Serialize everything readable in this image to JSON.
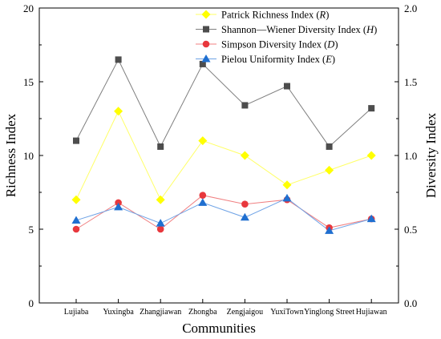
{
  "chart_data": {
    "type": "line",
    "xlabel": "Communities",
    "ylabel_left": "Richness Index",
    "ylabel_right": "Diversity Index",
    "ylim_left": [
      0,
      20
    ],
    "yticks_left": [
      "0",
      "5",
      "10",
      "15",
      "20"
    ],
    "ylim_right": [
      0,
      2.0
    ],
    "yticks_right": [
      "0.0",
      "0.5",
      "1.0",
      "1.5",
      "2.0"
    ],
    "categories": [
      "Lujiaba",
      "Yuxingba",
      "Zhangjiawan",
      "Zhongba",
      "Zengjaigou",
      "YuxiTown",
      "Yinglong Street",
      "Hujiawan"
    ],
    "grid": false,
    "legend_position": "top-right",
    "series": [
      {
        "name": "Patrick Richness Index (R)",
        "name_main": "Patrick Richness Index (",
        "name_var": "R",
        "axis": "left",
        "marker": "diamond",
        "color": "#ffff00",
        "line_color": "#ffff66",
        "values": [
          7,
          13,
          7,
          11,
          10,
          8,
          9,
          10
        ]
      },
      {
        "name": "Shannon—Wiener Diversity Index (H)",
        "name_main": "Shannon—Wiener Diversity Index (",
        "name_var": "H",
        "axis": "right",
        "marker": "square",
        "color": "#4d4d4d",
        "line_color": "#7f7f7f",
        "values": [
          1.1,
          1.65,
          1.06,
          1.62,
          1.34,
          1.47,
          1.06,
          1.32
        ]
      },
      {
        "name": "Simpson Diversity Index (D)",
        "name_main": "Simpson Diversity Index (",
        "name_var": "D",
        "axis": "right",
        "marker": "circle",
        "color": "#e8383d",
        "line_color": "#f07f80",
        "values": [
          0.5,
          0.68,
          0.5,
          0.73,
          0.67,
          0.7,
          0.51,
          0.57
        ]
      },
      {
        "name": "Pielou Uniformity Index (E)",
        "name_main": "Pielou Uniformity Index (",
        "name_var": "E",
        "axis": "right",
        "marker": "triangle",
        "color": "#1f6fd0",
        "line_color": "#6fa3e6",
        "values": [
          0.56,
          0.65,
          0.54,
          0.68,
          0.58,
          0.71,
          0.49,
          0.57
        ]
      }
    ]
  }
}
